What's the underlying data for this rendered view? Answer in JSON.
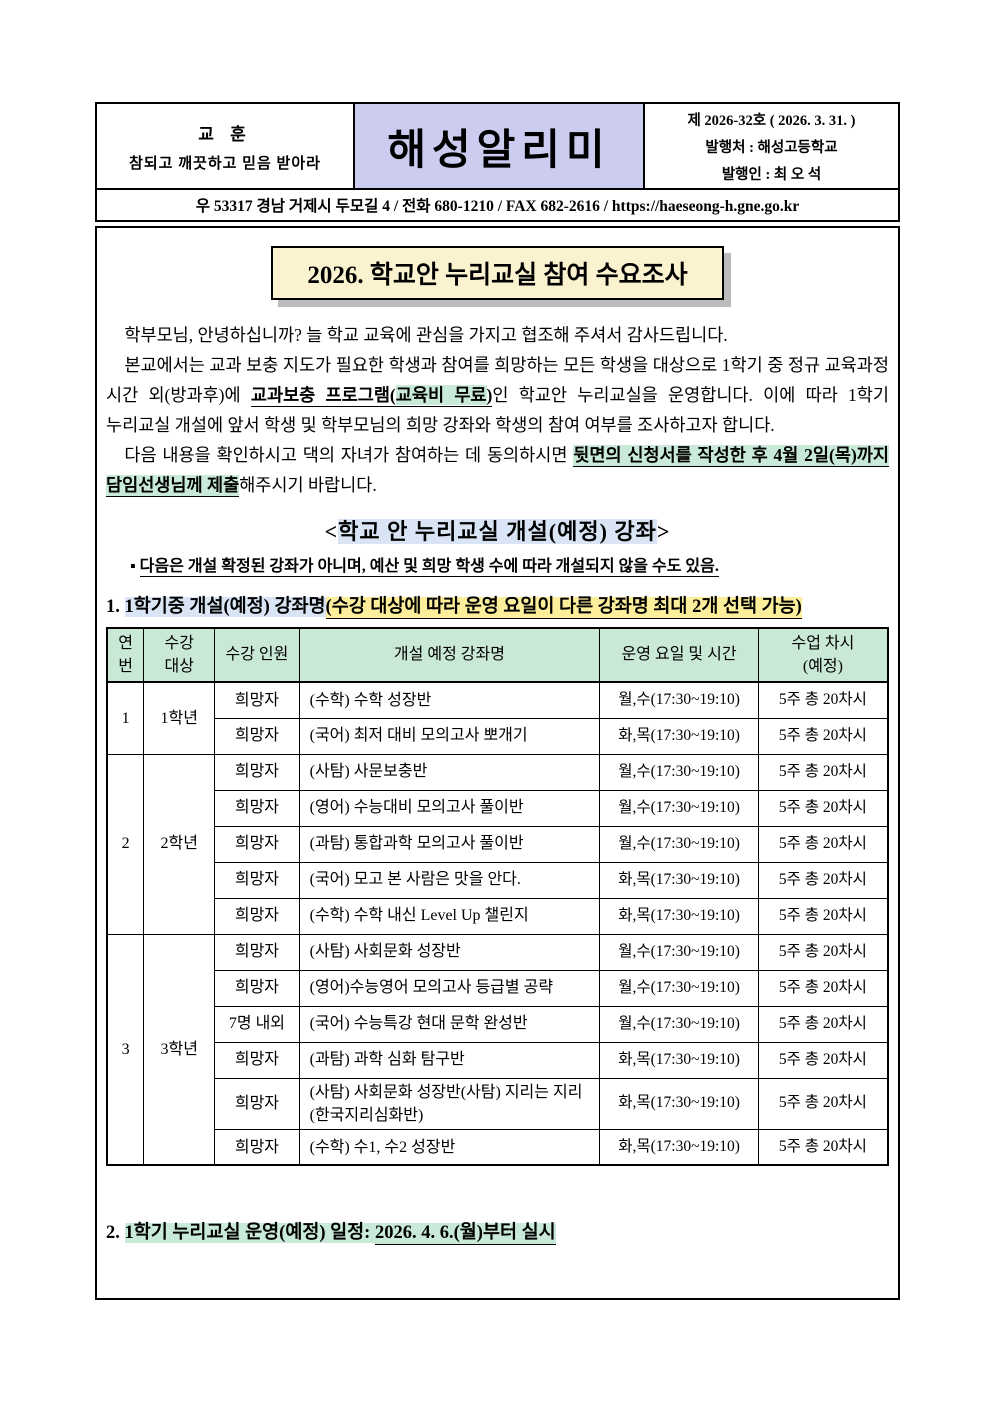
{
  "colors": {
    "lavender": "#ccccf0",
    "cream_banner": "#fbf3d0",
    "mint_highlight": "#c9ead9",
    "blue_highlight": "#d9e4f4",
    "yellow_highlight": "#fcee9b",
    "table_header": "#c9e9d6",
    "banner_shadow": "#bbbbbb"
  },
  "header": {
    "motto_label": "교 훈",
    "motto_text": "참되고 깨끗하고 믿음 받아라",
    "newsletter_title": "해성알리미",
    "issue_line": "제 2026-32호 ( 2026. 3. 31. )",
    "publisher_line": "발행처 : 해성고등학교",
    "publisher_person_line": "발행인 : 최 오 석",
    "address_line": "우 53317  경남 거제시 두모길 4  /  전화  680-1210 /  FAX 682-2616  /  https://haeseong-h.gne.go.kr"
  },
  "title_banner": "2026. 학교안 누리교실 참여 수요조사",
  "paragraphs": {
    "p1": "학부모님, 안녕하십니까? 늘 학교 교육에 관심을 가지고 협조해 주셔서 감사드립니다.",
    "p2_before": "본교에서는 교과 보충 지도가 필요한 학생과 참여를 희망하는 모든 학생을 대상으로 1학기 중 정규 교육과정 시간 외(방과후)에 ",
    "p2_bold_open": "교과보충 프로그램(",
    "p2_bold_highlight": "교육비 무료",
    "p2_bold_close": ")",
    "p2_after": "인 학교안 누리교실을 운영합니다. 이에 따라 1학기 누리교실 개설에 앞서 학생 및 학부모님의 희망 강좌와 학생의 참여 여부를 조사하고자 합니다.",
    "p3_before": "다음 내용을 확인하시고 댁의 자녀가 참여하는 데 동의하시면 ",
    "p3_highlight": "뒷면의 신청서를 작성한 후 4월 2일(목)까지 담임선생님께 제출",
    "p3_after": "해주시기 바랍니다."
  },
  "section": {
    "bracket_open": "<",
    "heading": "학교 안 누리교실 개설(예정) 강좌",
    "bracket_close": ">",
    "bullet": "▪",
    "note": "다음은 개설 확정된 강좌가 아니며, 예산 및 희망 학생 수에 따라 개설되지 않을 수도 있음."
  },
  "list1": {
    "number": "1. ",
    "label": "1학기중 개설(예정) 강좌명",
    "note": "(수강 대상에 따라 운영 요일이 다른 강좌명 최대 2개 선택 가능)"
  },
  "table": {
    "headers": [
      "연번",
      "수강\n대상",
      "수강 인원",
      "개설 예정 강좌명",
      "운영 요일 및 시간",
      "수업 차시\n(예정)"
    ],
    "groups": [
      {
        "no": "1",
        "grade": "1학년",
        "rows": [
          {
            "capacity": "희망자",
            "course": "(수학) 수학 성장반",
            "schedule": "월,수(17:30~19:10)",
            "sessions": "5주 총 20차시"
          },
          {
            "capacity": "희망자",
            "course": "(국어) 최저 대비 모의고사 뽀개기",
            "schedule": "화,목(17:30~19:10)",
            "sessions": "5주 총 20차시"
          }
        ]
      },
      {
        "no": "2",
        "grade": "2학년",
        "rows": [
          {
            "capacity": "희망자",
            "course": "(사탐) 사문보충반",
            "schedule": "월,수(17:30~19:10)",
            "sessions": "5주 총 20차시"
          },
          {
            "capacity": "희망자",
            "course": "(영어) 수능대비 모의고사 풀이반",
            "schedule": "월,수(17:30~19:10)",
            "sessions": "5주 총 20차시"
          },
          {
            "capacity": "희망자",
            "course": "(과탐) 통합과학 모의고사 풀이반",
            "schedule": "월,수(17:30~19:10)",
            "sessions": "5주 총 20차시"
          },
          {
            "capacity": "희망자",
            "course": "(국어) 모고 본 사람은 맛을 안다.",
            "schedule": "화,목(17:30~19:10)",
            "sessions": "5주 총 20차시"
          },
          {
            "capacity": "희망자",
            "course": "(수학) 수학 내신 Level Up 챌린지",
            "schedule": "화,목(17:30~19:10)",
            "sessions": "5주 총 20차시"
          }
        ]
      },
      {
        "no": "3",
        "grade": "3학년",
        "rows": [
          {
            "capacity": "희망자",
            "course": "(사탐) 사회문화 성장반",
            "schedule": "월,수(17:30~19:10)",
            "sessions": "5주 총 20차시"
          },
          {
            "capacity": "희망자",
            "course": "(영어)수능영어 모의고사 등급별 공략",
            "schedule": "월,수(17:30~19:10)",
            "sessions": "5주 총 20차시"
          },
          {
            "capacity": "7명 내외",
            "course": "(국어) 수능특강 현대 문학 완성반",
            "schedule": "월,수(17:30~19:10)",
            "sessions": "5주 총 20차시"
          },
          {
            "capacity": "희망자",
            "course": "(과탐) 과학 심화 탐구반",
            "schedule": "화,목(17:30~19:10)",
            "sessions": "5주 총 20차시"
          },
          {
            "capacity": "희망자",
            "course": "(사탐) 사회문화 성장반(사탐) 지리는 지리(한국지리심화반)",
            "schedule": "화,목(17:30~19:10)",
            "sessions": "5주 총 20차시"
          },
          {
            "capacity": "희망자",
            "course": "(수학) 수1, 수2 성장반",
            "schedule": "화,목(17:30~19:10)",
            "sessions": "5주 총 20차시"
          }
        ]
      }
    ]
  },
  "list2": {
    "number": "2. ",
    "label": "1학기 누리교실 운영(예정) 일정: ",
    "underlined": "2026. 4. 6.(월)부터 실시"
  }
}
